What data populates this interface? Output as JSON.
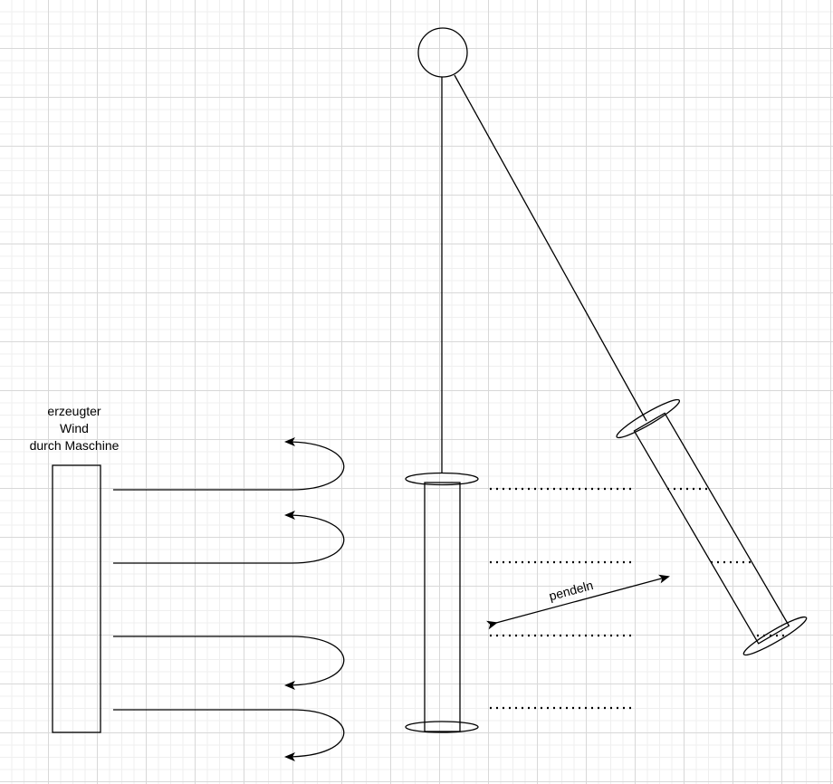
{
  "wind_label": {
    "line1": "erzeugter",
    "line2": "Wind",
    "line3": "durch Maschine"
  },
  "swing_label": "pendeln"
}
